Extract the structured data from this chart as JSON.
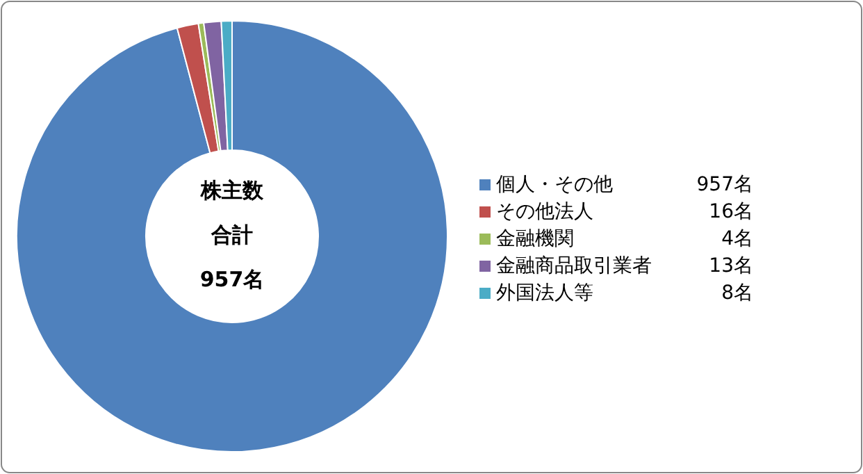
{
  "chart_data": {
    "type": "donut",
    "categories": [
      "個人・その他",
      "その他法人",
      "金融機関",
      "金融商品取引業者",
      "外国法人等"
    ],
    "values": [
      957,
      16,
      4,
      13,
      8
    ],
    "colors": [
      "#4f81bd",
      "#c0504d",
      "#9bbb59",
      "#8064a2",
      "#4bacc6"
    ],
    "value_labels": [
      "957名",
      "16名",
      "4名",
      "13名",
      "8名"
    ],
    "annotations": [
      "株主数",
      "合計",
      "957名"
    ],
    "legend": "right"
  }
}
